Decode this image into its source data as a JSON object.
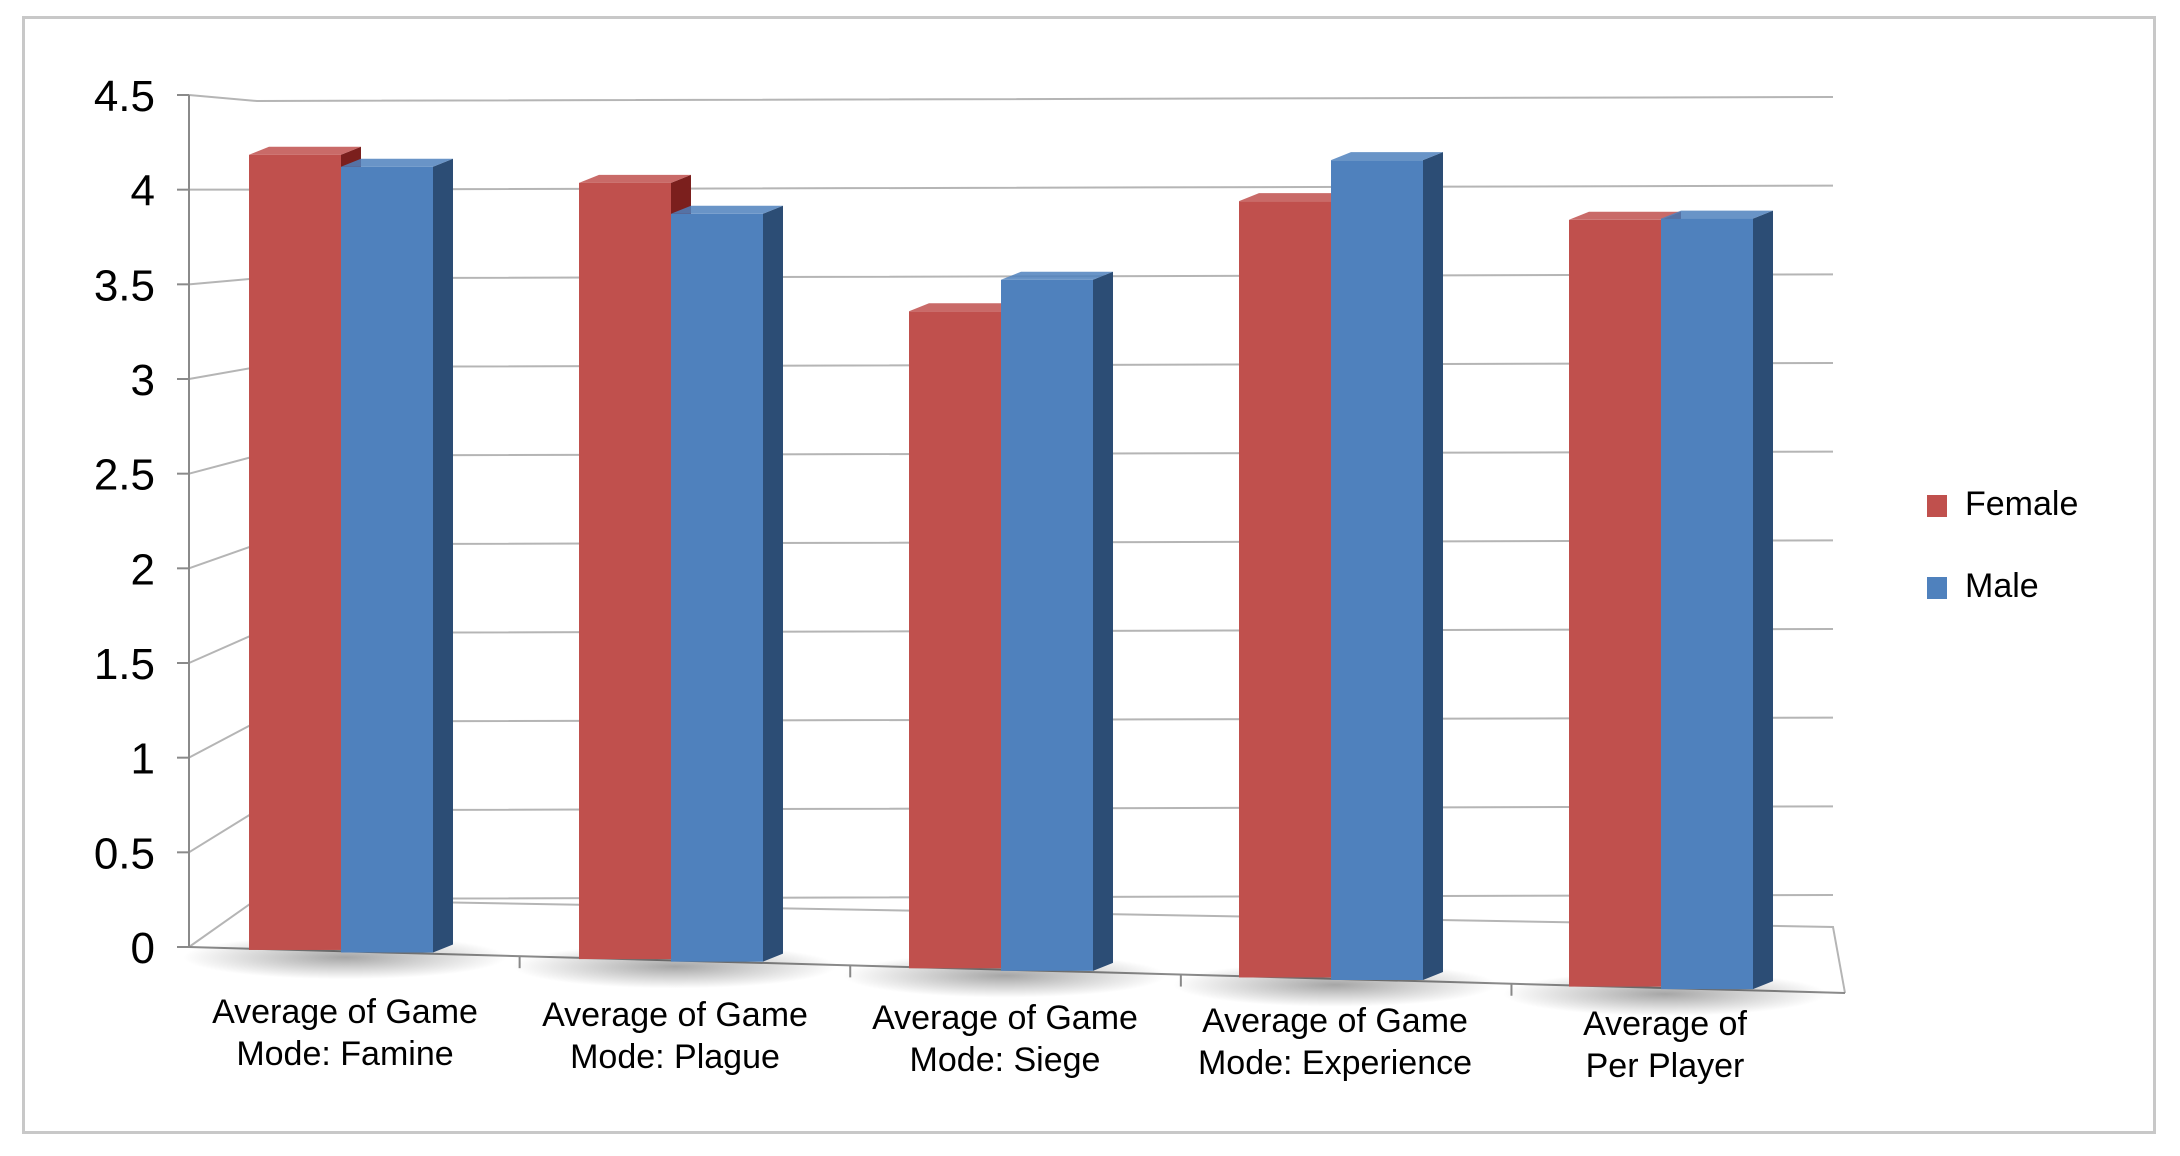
{
  "chart_data": {
    "type": "bar",
    "categories": [
      [
        "Average of Game",
        "Mode: Famine"
      ],
      [
        "Average of Game",
        "Mode: Plague"
      ],
      [
        "Average of Game",
        "Mode: Siege"
      ],
      [
        "Average of Game",
        "Mode: Experience"
      ],
      [
        "Average of",
        "Per Player"
      ]
    ],
    "series": [
      {
        "name": "Female",
        "values": [
          4.2,
          4.1,
          3.47,
          4.1,
          4.05
        ],
        "color": "#c0504d",
        "side_color": "#7b1f1d"
      },
      {
        "name": "Male",
        "values": [
          4.15,
          3.95,
          3.65,
          4.33,
          4.07
        ],
        "color": "#4f81bd",
        "side_color": "#2c4d75"
      }
    ],
    "ylim": [
      0,
      4.5
    ],
    "yticks": [
      "0",
      "0.5",
      "1",
      "1.5",
      "2",
      "2.5",
      "3",
      "3.5",
      "4",
      "4.5"
    ],
    "grid": true,
    "legend_position": "right",
    "style": "3d-clustered-column"
  }
}
